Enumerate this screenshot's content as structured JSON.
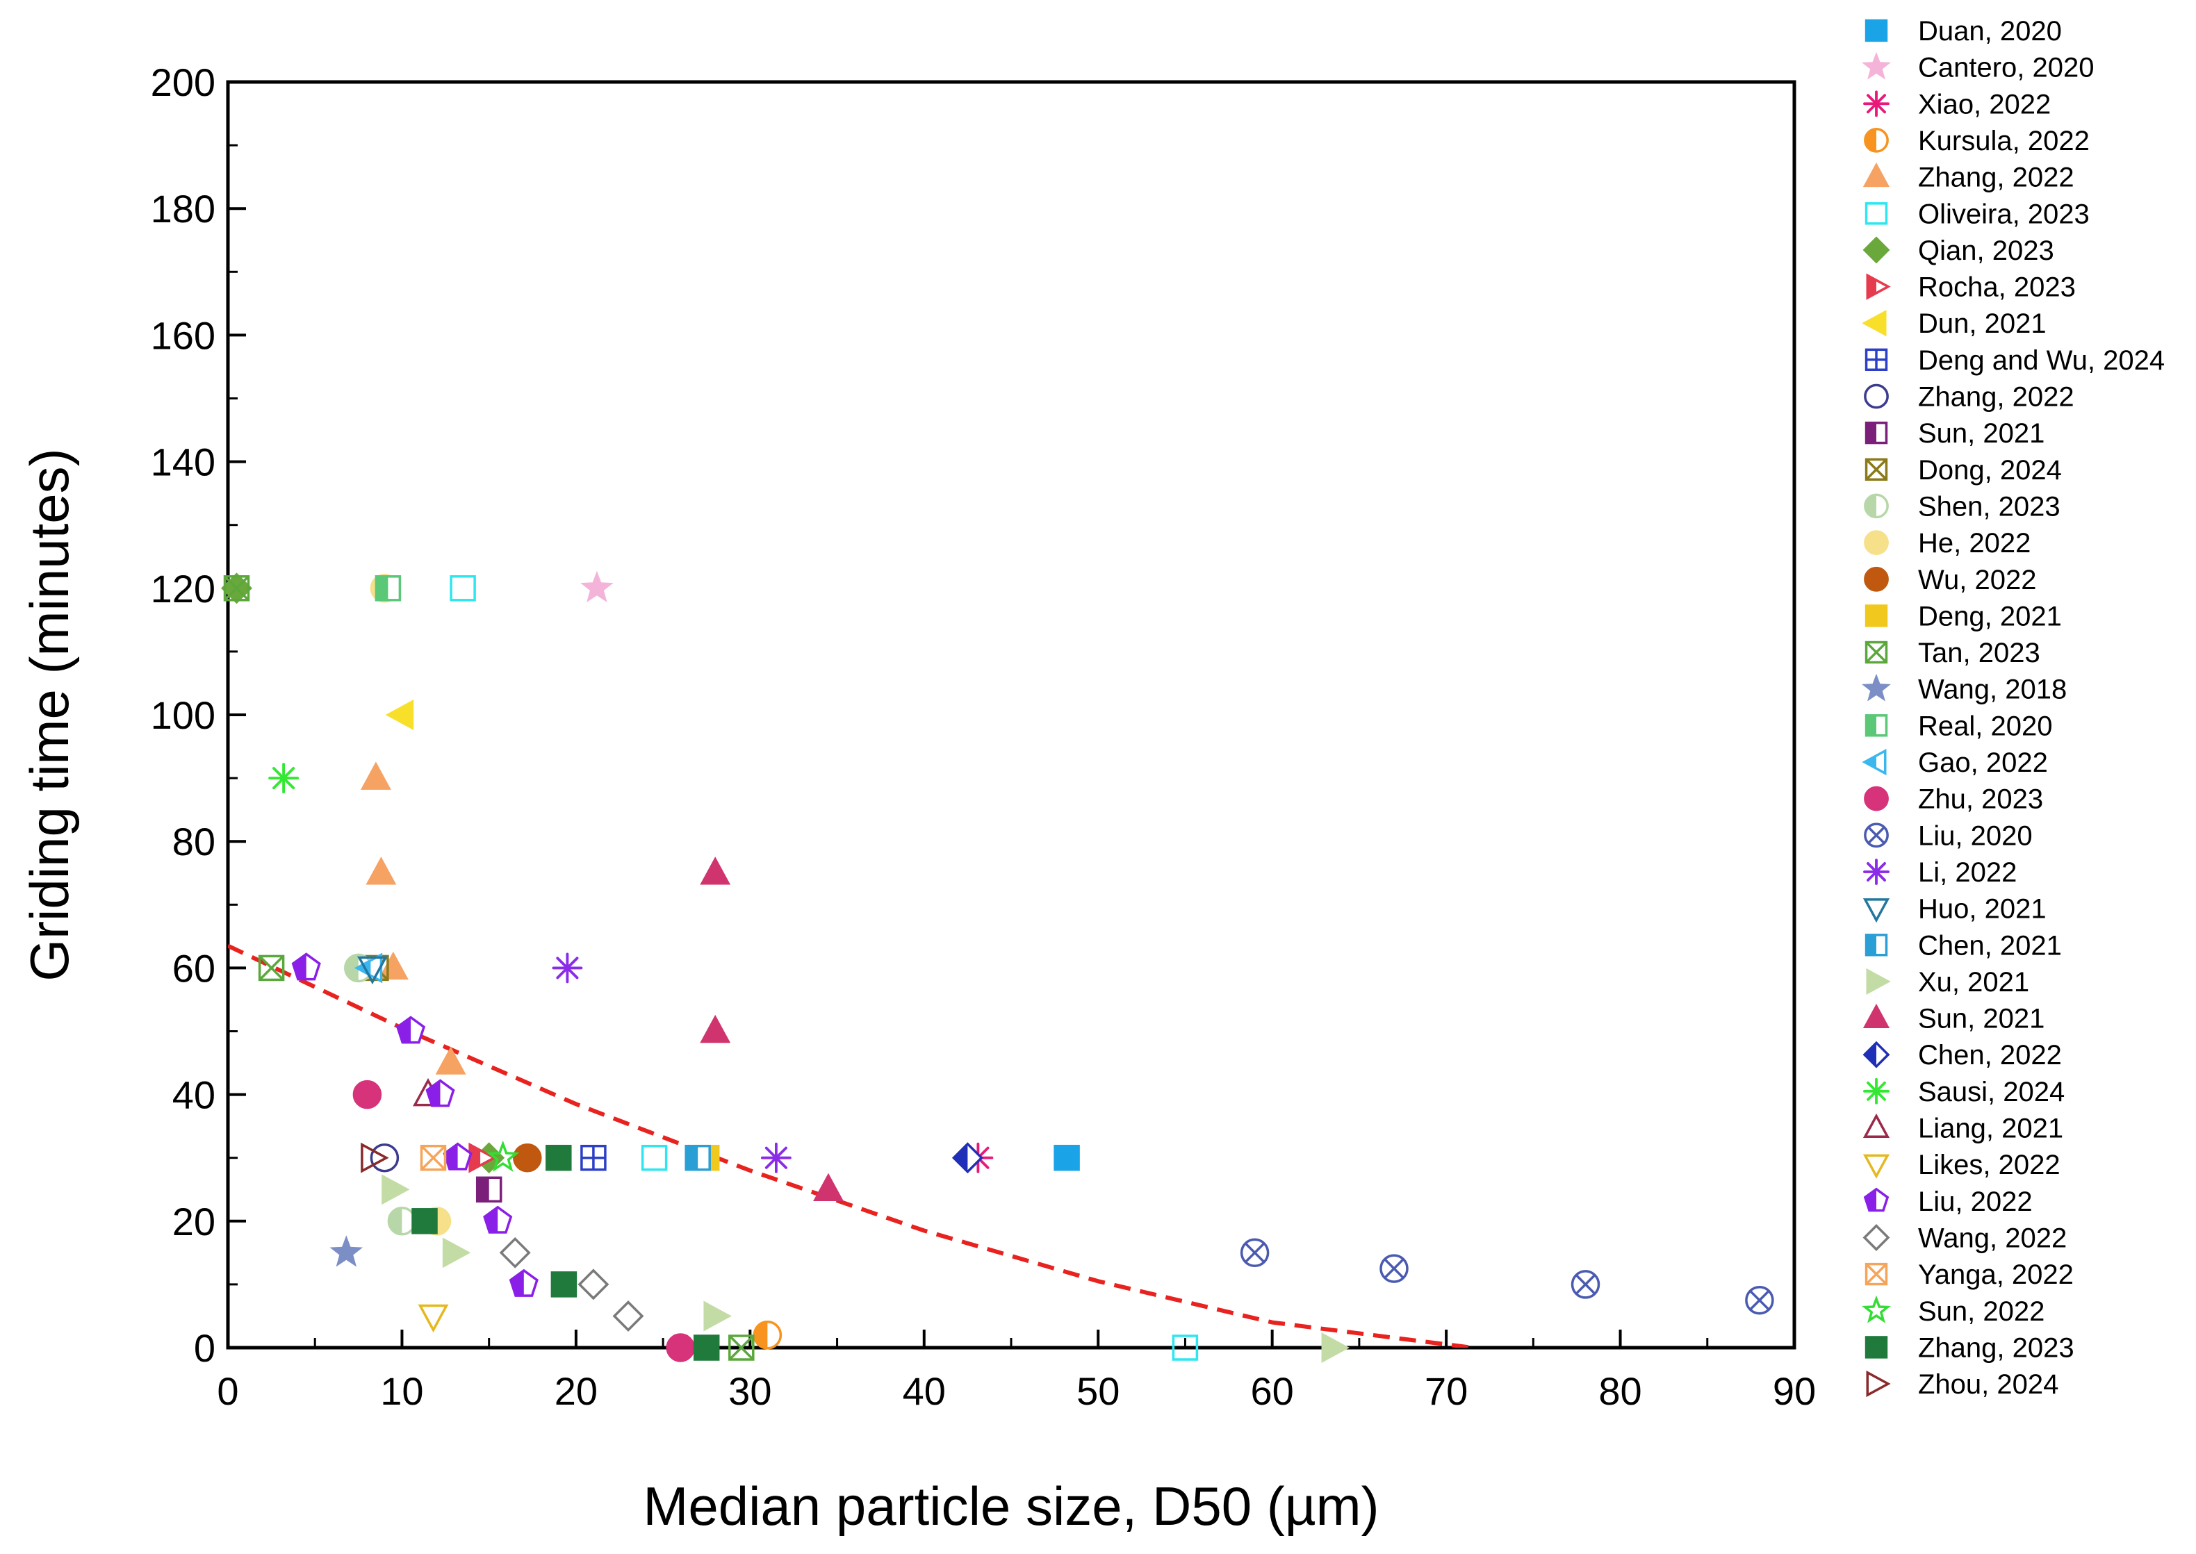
{
  "chart_data": {
    "type": "scatter",
    "title": "",
    "xlabel": "Median particle size, D50 (µm)",
    "ylabel": "Griding time (minutes)",
    "xlim": [
      0,
      90
    ],
    "ylim": [
      0,
      200
    ],
    "xticks": [
      "0",
      "10",
      "20",
      "30",
      "40",
      "50",
      "60",
      "70",
      "80",
      "90"
    ],
    "yticks": [
      "0",
      "20",
      "40",
      "60",
      "80",
      "100",
      "120",
      "140",
      "160",
      "180",
      "200"
    ],
    "legend_position": "right-outside",
    "trendline": {
      "style": "dashed",
      "color": "#e8221e",
      "x": [
        0,
        10,
        20,
        30,
        40,
        50,
        60,
        71.5
      ],
      "y": [
        63.5,
        50.5,
        38.5,
        28,
        18.5,
        10.5,
        4,
        0
      ]
    },
    "series": [
      {
        "name": "Duan, 2020",
        "marker": "square",
        "color": "#1ba3e8",
        "fill": "full",
        "points": [
          [
            48.2,
            30
          ]
        ]
      },
      {
        "name": "Cantero, 2020",
        "marker": "star",
        "color": "#f4b3d9",
        "fill": "full",
        "points": [
          [
            21.2,
            120
          ]
        ]
      },
      {
        "name": "Xiao, 2022",
        "marker": "asterisk",
        "color": "#e8197a",
        "fill": "none",
        "points": [
          [
            43.1,
            30
          ]
        ]
      },
      {
        "name": "Kursula, 2022",
        "marker": "circle",
        "color": "#f7931e",
        "fill": "half",
        "points": [
          [
            31.0,
            2
          ]
        ]
      },
      {
        "name": "Zhang, 2022",
        "marker": "triangle-up",
        "color": "#f5a262",
        "fill": "full",
        "points": [
          [
            8.5,
            90
          ],
          [
            8.8,
            75
          ],
          [
            9.5,
            60
          ],
          [
            12.8,
            45
          ]
        ]
      },
      {
        "name": "Oliveira, 2023",
        "marker": "square",
        "color": "#2ee6f0",
        "fill": "none",
        "points": [
          [
            13.5,
            120
          ],
          [
            24.5,
            30
          ],
          [
            55.0,
            0
          ]
        ]
      },
      {
        "name": "Qian, 2023",
        "marker": "diamond",
        "color": "#6aa83b",
        "fill": "full",
        "points": [
          [
            0.5,
            120
          ],
          [
            15.0,
            30
          ]
        ]
      },
      {
        "name": "Rocha, 2023",
        "marker": "triangle-right",
        "color": "#e63b4e",
        "fill": "half",
        "points": [
          [
            14.5,
            30
          ]
        ]
      },
      {
        "name": "Dun, 2021",
        "marker": "triangle-left",
        "color": "#f7df2a",
        "fill": "full",
        "points": [
          [
            10.0,
            100
          ]
        ]
      },
      {
        "name": "Deng and Wu, 2024",
        "marker": "square-plus",
        "color": "#2b3fc7",
        "fill": "none",
        "points": [
          [
            21.0,
            30
          ]
        ]
      },
      {
        "name": "Zhang, 2022",
        "marker": "circle",
        "color": "#3b3b8f",
        "fill": "none",
        "points": [
          [
            9.0,
            30
          ]
        ]
      },
      {
        "name": "Sun, 2021",
        "marker": "square",
        "color": "#7a1f7a",
        "fill": "half",
        "points": [
          [
            15.0,
            25
          ]
        ]
      },
      {
        "name": "Dong, 2024",
        "marker": "square-x",
        "color": "#8a7a1a",
        "fill": "none",
        "points": [
          [
            8.5,
            60
          ]
        ]
      },
      {
        "name": "Shen, 2023",
        "marker": "circle",
        "color": "#b7d7a8",
        "fill": "half",
        "points": [
          [
            7.5,
            60
          ],
          [
            10.0,
            20
          ]
        ]
      },
      {
        "name": "He, 2022",
        "marker": "circle",
        "color": "#f7e08a",
        "fill": "full",
        "points": [
          [
            9.0,
            120
          ],
          [
            12.0,
            20
          ]
        ]
      },
      {
        "name": "Wu, 2022",
        "marker": "circle",
        "color": "#c0580f",
        "fill": "full",
        "points": [
          [
            17.2,
            30
          ]
        ]
      },
      {
        "name": "Deng, 2021",
        "marker": "square",
        "color": "#f0c81e",
        "fill": "full",
        "points": [
          [
            27.5,
            30
          ]
        ]
      },
      {
        "name": "Tan, 2023",
        "marker": "square-x",
        "color": "#5aa83b",
        "fill": "none",
        "points": [
          [
            0.5,
            120
          ],
          [
            2.5,
            60
          ],
          [
            29.5,
            0
          ]
        ]
      },
      {
        "name": "Wang, 2018",
        "marker": "star",
        "color": "#7b8ec6",
        "fill": "full",
        "points": [
          [
            6.8,
            15
          ]
        ]
      },
      {
        "name": "Real, 2020",
        "marker": "square",
        "color": "#5ac877",
        "fill": "half",
        "points": [
          [
            9.2,
            120
          ]
        ]
      },
      {
        "name": "Gao, 2022",
        "marker": "triangle-left",
        "color": "#3bb7f0",
        "fill": "half",
        "points": [
          [
            8.2,
            60
          ]
        ]
      },
      {
        "name": "Zhu, 2023",
        "marker": "circle",
        "color": "#d6337a",
        "fill": "full",
        "points": [
          [
            8.0,
            40
          ],
          [
            26.0,
            0
          ]
        ]
      },
      {
        "name": "Liu, 2020",
        "marker": "circle-x",
        "color": "#4a5ab0",
        "fill": "none",
        "points": [
          [
            59.0,
            15
          ],
          [
            67.0,
            12.5
          ],
          [
            78.0,
            10
          ],
          [
            88.0,
            7.5
          ]
        ]
      },
      {
        "name": "Li, 2022",
        "marker": "asterisk",
        "color": "#8a2be8",
        "fill": "none",
        "points": [
          [
            19.5,
            60
          ],
          [
            31.5,
            30
          ]
        ]
      },
      {
        "name": "Huo, 2021",
        "marker": "triangle-down",
        "color": "#2277a0",
        "fill": "none",
        "points": [
          [
            8.3,
            60
          ]
        ]
      },
      {
        "name": "Chen, 2021",
        "marker": "square",
        "color": "#2a9fd6",
        "fill": "half",
        "points": [
          [
            27.0,
            30
          ]
        ]
      },
      {
        "name": "Xu, 2021",
        "marker": "triangle-right",
        "color": "#c3dca5",
        "fill": "full",
        "points": [
          [
            9.5,
            25
          ],
          [
            13.0,
            15
          ],
          [
            28.0,
            5
          ],
          [
            63.5,
            0
          ]
        ]
      },
      {
        "name": "Sun, 2021",
        "marker": "triangle-up",
        "color": "#d0346e",
        "fill": "full",
        "points": [
          [
            28.0,
            75
          ],
          [
            28.0,
            50
          ],
          [
            34.5,
            25
          ]
        ]
      },
      {
        "name": "Chen, 2022",
        "marker": "diamond",
        "color": "#1f2fb8",
        "fill": "half",
        "points": [
          [
            42.5,
            30
          ]
        ]
      },
      {
        "name": "Sausi, 2024",
        "marker": "asterisk",
        "color": "#33e833",
        "fill": "none",
        "points": [
          [
            3.2,
            90
          ]
        ]
      },
      {
        "name": "Liang, 2021",
        "marker": "triangle-up",
        "color": "#9a2a4a",
        "fill": "none",
        "points": [
          [
            11.5,
            40
          ]
        ]
      },
      {
        "name": "Likes, 2022",
        "marker": "triangle-down",
        "color": "#e6b81e",
        "fill": "none",
        "points": [
          [
            11.8,
            5
          ]
        ]
      },
      {
        "name": "Liu, 2022",
        "marker": "pentagon",
        "color": "#8a1fe8",
        "fill": "half",
        "points": [
          [
            4.5,
            60
          ],
          [
            10.5,
            50
          ],
          [
            12.2,
            40
          ],
          [
            13.2,
            30
          ],
          [
            15.5,
            20
          ],
          [
            17.0,
            10
          ]
        ]
      },
      {
        "name": "Wang, 2022",
        "marker": "diamond",
        "color": "#7a7a7a",
        "fill": "none",
        "points": [
          [
            16.5,
            15
          ],
          [
            21.0,
            10
          ],
          [
            23.0,
            5
          ]
        ]
      },
      {
        "name": "Yanga, 2022",
        "marker": "square-x",
        "color": "#f5a55a",
        "fill": "none",
        "points": [
          [
            11.8,
            30
          ]
        ]
      },
      {
        "name": "Sun, 2022",
        "marker": "star",
        "color": "#33dd33",
        "fill": "none",
        "points": [
          [
            15.8,
            30
          ]
        ]
      },
      {
        "name": "Zhang, 2023",
        "marker": "square",
        "color": "#1f7a3b",
        "fill": "full",
        "points": [
          [
            11.3,
            20
          ],
          [
            19.0,
            30
          ],
          [
            19.3,
            10
          ],
          [
            27.5,
            0
          ]
        ]
      },
      {
        "name": "Zhou, 2024",
        "marker": "triangle-right",
        "color": "#8a2a2a",
        "fill": "none",
        "points": [
          [
            8.3,
            30
          ]
        ]
      }
    ]
  }
}
